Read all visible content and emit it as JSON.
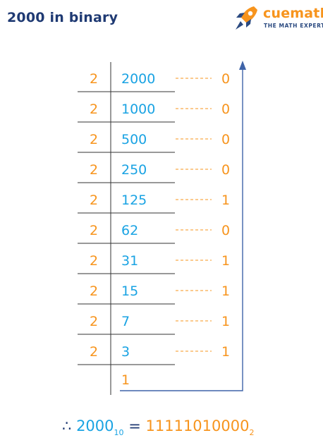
{
  "header": {
    "title": "2000 in binary"
  },
  "logo": {
    "icon": "rocket-icon",
    "name": "cuemath",
    "tagline": "THE MATH EXPERT"
  },
  "division": {
    "divisor": "2",
    "rows": [
      {
        "dividend": "2000",
        "remainder": "0"
      },
      {
        "dividend": "1000",
        "remainder": "0"
      },
      {
        "dividend": "500",
        "remainder": "0"
      },
      {
        "dividend": "250",
        "remainder": "0"
      },
      {
        "dividend": "125",
        "remainder": "1"
      },
      {
        "dividend": "62",
        "remainder": "0"
      },
      {
        "dividend": "31",
        "remainder": "1"
      },
      {
        "dividend": "15",
        "remainder": "1"
      },
      {
        "dividend": "7",
        "remainder": "1"
      },
      {
        "dividend": "3",
        "remainder": "1"
      }
    ],
    "final_quotient": "1"
  },
  "result": {
    "therefore": "∴",
    "decimal": "2000",
    "decimal_base": "10",
    "equals": "=",
    "binary": "11111010000",
    "binary_base": "2"
  },
  "colors": {
    "dark_blue": "#1f3a73",
    "blue": "#1aa3e3",
    "orange": "#f7941d",
    "arrow": "#3f64a8",
    "line": "#333333"
  }
}
